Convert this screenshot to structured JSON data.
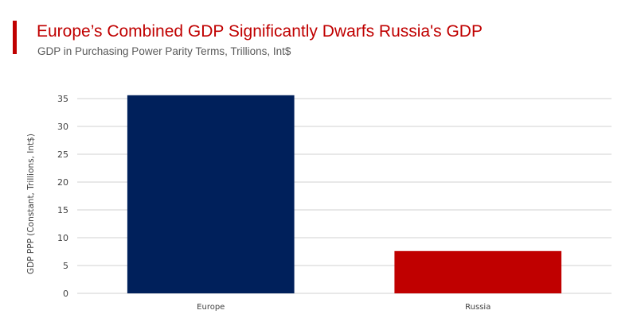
{
  "header": {
    "title": "Europe’s Combined GDP Significantly Dwarfs Russia's GDP",
    "subtitle": "GDP in Purchasing Power Parity Terms, Trillions, Int$"
  },
  "colors": {
    "accent": "#c00000",
    "europe_bar": "#00205b",
    "russia_bar": "#c00000",
    "gridline": "#d9d9d9",
    "axis_text": "#404040"
  },
  "chart_data": {
    "type": "bar",
    "title": "Europe’s Combined GDP Significantly Dwarfs Russia's GDP",
    "subtitle": "GDP in Purchasing Power Parity Terms, Trillions, Int$",
    "xlabel": "",
    "ylabel": "GDP PPP (Constant, Trillions, Int$)",
    "categories": [
      "Europe",
      "Russia"
    ],
    "values": [
      35.6,
      7.6
    ],
    "bar_colors": [
      "#00205b",
      "#c00000"
    ],
    "ylim": [
      0,
      35
    ],
    "yticks": [
      0,
      5,
      10,
      15,
      20,
      25,
      30,
      35
    ],
    "grid": true,
    "legend": "none"
  }
}
